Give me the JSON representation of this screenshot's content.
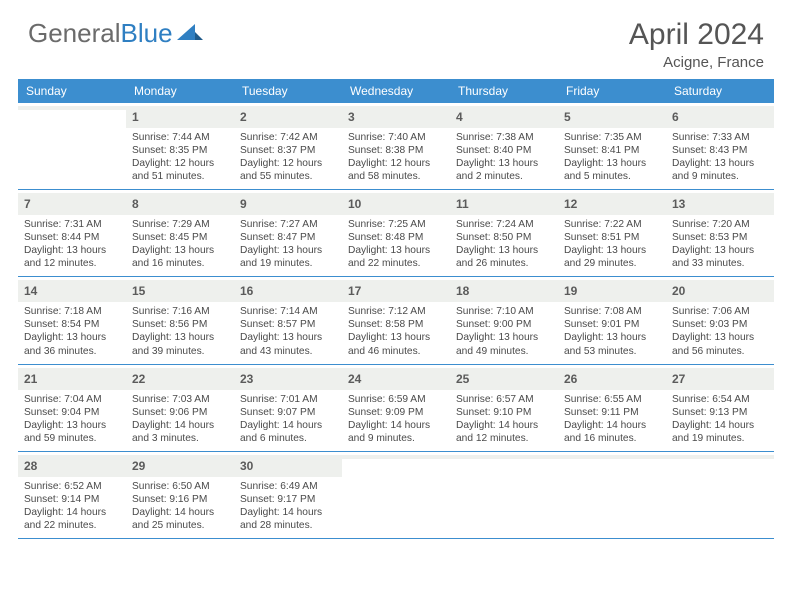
{
  "logo": {
    "part1": "General",
    "part2": "Blue"
  },
  "header": {
    "title": "April 2024",
    "location": "Acigne, France"
  },
  "colors": {
    "header_bar": "#3c8ecf",
    "daynum_bg": "#eef0ed",
    "text_primary": "#555555",
    "text_body": "#4a4a4a",
    "logo_gray": "#6b6b6b",
    "logo_blue": "#2f7fc2",
    "border": "#3c8ecf",
    "background": "#ffffff"
  },
  "typography": {
    "title_fontsize": 30,
    "location_fontsize": 15,
    "weekday_fontsize": 12,
    "daynum_fontsize": 12,
    "body_fontsize": 10.2
  },
  "weekdays": [
    "Sunday",
    "Monday",
    "Tuesday",
    "Wednesday",
    "Thursday",
    "Friday",
    "Saturday"
  ],
  "weeks": [
    [
      {
        "empty": true
      },
      {
        "num": "1",
        "sunrise": "Sunrise: 7:44 AM",
        "sunset": "Sunset: 8:35 PM",
        "daylight": "Daylight: 12 hours and 51 minutes."
      },
      {
        "num": "2",
        "sunrise": "Sunrise: 7:42 AM",
        "sunset": "Sunset: 8:37 PM",
        "daylight": "Daylight: 12 hours and 55 minutes."
      },
      {
        "num": "3",
        "sunrise": "Sunrise: 7:40 AM",
        "sunset": "Sunset: 8:38 PM",
        "daylight": "Daylight: 12 hours and 58 minutes."
      },
      {
        "num": "4",
        "sunrise": "Sunrise: 7:38 AM",
        "sunset": "Sunset: 8:40 PM",
        "daylight": "Daylight: 13 hours and 2 minutes."
      },
      {
        "num": "5",
        "sunrise": "Sunrise: 7:35 AM",
        "sunset": "Sunset: 8:41 PM",
        "daylight": "Daylight: 13 hours and 5 minutes."
      },
      {
        "num": "6",
        "sunrise": "Sunrise: 7:33 AM",
        "sunset": "Sunset: 8:43 PM",
        "daylight": "Daylight: 13 hours and 9 minutes."
      }
    ],
    [
      {
        "num": "7",
        "sunrise": "Sunrise: 7:31 AM",
        "sunset": "Sunset: 8:44 PM",
        "daylight": "Daylight: 13 hours and 12 minutes."
      },
      {
        "num": "8",
        "sunrise": "Sunrise: 7:29 AM",
        "sunset": "Sunset: 8:45 PM",
        "daylight": "Daylight: 13 hours and 16 minutes."
      },
      {
        "num": "9",
        "sunrise": "Sunrise: 7:27 AM",
        "sunset": "Sunset: 8:47 PM",
        "daylight": "Daylight: 13 hours and 19 minutes."
      },
      {
        "num": "10",
        "sunrise": "Sunrise: 7:25 AM",
        "sunset": "Sunset: 8:48 PM",
        "daylight": "Daylight: 13 hours and 22 minutes."
      },
      {
        "num": "11",
        "sunrise": "Sunrise: 7:24 AM",
        "sunset": "Sunset: 8:50 PM",
        "daylight": "Daylight: 13 hours and 26 minutes."
      },
      {
        "num": "12",
        "sunrise": "Sunrise: 7:22 AM",
        "sunset": "Sunset: 8:51 PM",
        "daylight": "Daylight: 13 hours and 29 minutes."
      },
      {
        "num": "13",
        "sunrise": "Sunrise: 7:20 AM",
        "sunset": "Sunset: 8:53 PM",
        "daylight": "Daylight: 13 hours and 33 minutes."
      }
    ],
    [
      {
        "num": "14",
        "sunrise": "Sunrise: 7:18 AM",
        "sunset": "Sunset: 8:54 PM",
        "daylight": "Daylight: 13 hours and 36 minutes."
      },
      {
        "num": "15",
        "sunrise": "Sunrise: 7:16 AM",
        "sunset": "Sunset: 8:56 PM",
        "daylight": "Daylight: 13 hours and 39 minutes."
      },
      {
        "num": "16",
        "sunrise": "Sunrise: 7:14 AM",
        "sunset": "Sunset: 8:57 PM",
        "daylight": "Daylight: 13 hours and 43 minutes."
      },
      {
        "num": "17",
        "sunrise": "Sunrise: 7:12 AM",
        "sunset": "Sunset: 8:58 PM",
        "daylight": "Daylight: 13 hours and 46 minutes."
      },
      {
        "num": "18",
        "sunrise": "Sunrise: 7:10 AM",
        "sunset": "Sunset: 9:00 PM",
        "daylight": "Daylight: 13 hours and 49 minutes."
      },
      {
        "num": "19",
        "sunrise": "Sunrise: 7:08 AM",
        "sunset": "Sunset: 9:01 PM",
        "daylight": "Daylight: 13 hours and 53 minutes."
      },
      {
        "num": "20",
        "sunrise": "Sunrise: 7:06 AM",
        "sunset": "Sunset: 9:03 PM",
        "daylight": "Daylight: 13 hours and 56 minutes."
      }
    ],
    [
      {
        "num": "21",
        "sunrise": "Sunrise: 7:04 AM",
        "sunset": "Sunset: 9:04 PM",
        "daylight": "Daylight: 13 hours and 59 minutes."
      },
      {
        "num": "22",
        "sunrise": "Sunrise: 7:03 AM",
        "sunset": "Sunset: 9:06 PM",
        "daylight": "Daylight: 14 hours and 3 minutes."
      },
      {
        "num": "23",
        "sunrise": "Sunrise: 7:01 AM",
        "sunset": "Sunset: 9:07 PM",
        "daylight": "Daylight: 14 hours and 6 minutes."
      },
      {
        "num": "24",
        "sunrise": "Sunrise: 6:59 AM",
        "sunset": "Sunset: 9:09 PM",
        "daylight": "Daylight: 14 hours and 9 minutes."
      },
      {
        "num": "25",
        "sunrise": "Sunrise: 6:57 AM",
        "sunset": "Sunset: 9:10 PM",
        "daylight": "Daylight: 14 hours and 12 minutes."
      },
      {
        "num": "26",
        "sunrise": "Sunrise: 6:55 AM",
        "sunset": "Sunset: 9:11 PM",
        "daylight": "Daylight: 14 hours and 16 minutes."
      },
      {
        "num": "27",
        "sunrise": "Sunrise: 6:54 AM",
        "sunset": "Sunset: 9:13 PM",
        "daylight": "Daylight: 14 hours and 19 minutes."
      }
    ],
    [
      {
        "num": "28",
        "sunrise": "Sunrise: 6:52 AM",
        "sunset": "Sunset: 9:14 PM",
        "daylight": "Daylight: 14 hours and 22 minutes."
      },
      {
        "num": "29",
        "sunrise": "Sunrise: 6:50 AM",
        "sunset": "Sunset: 9:16 PM",
        "daylight": "Daylight: 14 hours and 25 minutes."
      },
      {
        "num": "30",
        "sunrise": "Sunrise: 6:49 AM",
        "sunset": "Sunset: 9:17 PM",
        "daylight": "Daylight: 14 hours and 28 minutes."
      },
      {
        "empty": true
      },
      {
        "empty": true
      },
      {
        "empty": true
      },
      {
        "empty": true
      }
    ]
  ]
}
